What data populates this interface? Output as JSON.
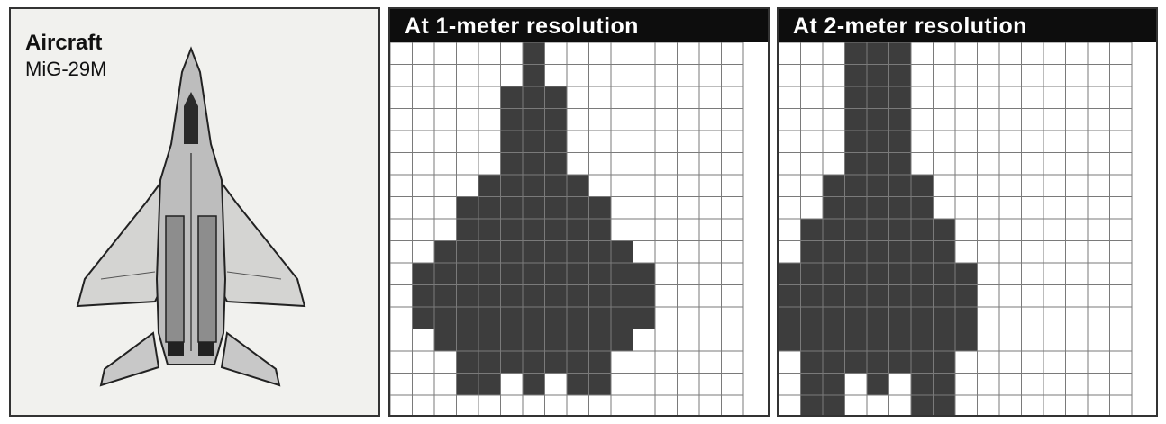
{
  "panels": {
    "aircraft": {
      "title": "Aircraft",
      "model": "MiG-29M"
    },
    "one_meter": {
      "header": "At 1-meter resolution",
      "rows": [
        "......X.........",
        "......X.........",
        ".....XXX........",
        ".....XXX........",
        ".....XXX........",
        ".....XXX........",
        "....XXXXX.......",
        "...XXXXXXX......",
        "...XXXXXXX......",
        "..XXXXXXXXX.....",
        ".XXXXXXXXXXX....",
        ".XXXXXXXXXXX....",
        ".XXXXXXXXXXX....",
        "..XXXXXXXXX.....",
        "...XXXXXXX......",
        "...XX.X.XX......",
        "................"
      ]
    },
    "two_meter": {
      "header": "At 2-meter resolution",
      "rows": [
        "...XXX..........",
        "...XXX..........",
        "...XXX..........",
        "...XXX..........",
        "...XXX..........",
        "...XXX..........",
        "..XXXXX.........",
        "..XXXXX.........",
        ".XXXXXXX........",
        ".XXXXXXX........",
        "XXXXXXXXX.......",
        "XXXXXXXXX.......",
        "XXXXXXXXX.......",
        "XXXXXXXXX.......",
        ".XXXXXXX........",
        ".XX.X.XX........",
        ".XX...XX........"
      ]
    },
    "colors": {
      "grid": "#7a7a7a",
      "fill": "#3d3d3d",
      "header_bg": "#0d0d0d"
    }
  }
}
